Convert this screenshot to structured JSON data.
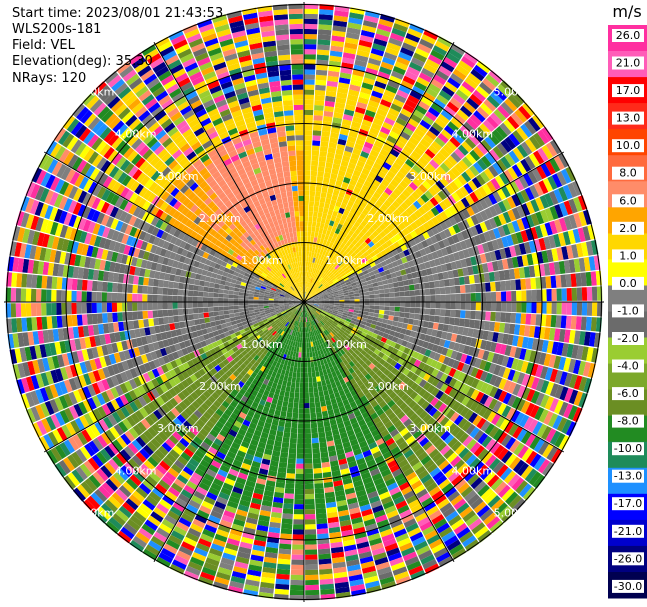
{
  "header": {
    "start_time": "Start time: 2023/08/01 21:43:53",
    "device": "WLS200s-181",
    "field": "Field: VEL",
    "elevation": "Elevation(deg): 35.30",
    "nrays": "NRays: 120"
  },
  "colorbar": {
    "unit": "m/s",
    "ticks": [
      "26.0",
      "21.0",
      "17.0",
      "13.0",
      "10.0",
      "8.0",
      "6.0",
      "2.0",
      "1.0",
      "0.0",
      "-1.0",
      "-2.0",
      "-4.0",
      "-6.0",
      "-8.0",
      "-10.0",
      "-13.0",
      "-17.0",
      "-21.0",
      "-26.0",
      "-30.0"
    ],
    "colors": [
      "#ff2fa0",
      "#ff5cb8",
      "#ff0000",
      "#ff2a1a",
      "#ff4500",
      "#ff6a3d",
      "#ff8c69",
      "#ffa500",
      "#ffd700",
      "#ffff00",
      "#7f7f7f",
      "#6b6b6b",
      "#9acd32",
      "#7ca82a",
      "#6b8e23",
      "#228b22",
      "#1e8b5a",
      "#1e90ff",
      "#0000ff",
      "#0000cd",
      "#000080",
      "#000050"
    ]
  },
  "range_labels": [
    "1.00km",
    "2.00km",
    "3.00km",
    "4.00km",
    "5.00km"
  ],
  "chart_data": {
    "type": "heatmap",
    "projection": "polar (PPI scan)",
    "field": "VEL",
    "units": "m/s",
    "n_rays": 120,
    "ring_spacing_km": 1.0,
    "max_range_km": 5.0,
    "value_range": [
      -30,
      30
    ],
    "sectors": [
      {
        "azimuth_range_deg": [
          300,
          360
        ],
        "range_km": [
          1.0,
          3.0
        ],
        "typical_velocity": 8.0
      },
      {
        "azimuth_range_deg": [
          270,
          90
        ],
        "range_km": [
          0.3,
          3.0
        ],
        "typical_velocity": 2.0
      },
      {
        "azimuth_range_deg": [
          60,
          120
        ],
        "range_km": [
          0.3,
          2.0
        ],
        "typical_velocity": 0.0
      },
      {
        "azimuth_range_deg": [
          240,
          300
        ],
        "range_km": [
          0.3,
          2.0
        ],
        "typical_velocity": 0.0
      },
      {
        "azimuth_range_deg": [
          90,
          270
        ],
        "range_km": [
          0.0,
          4.0
        ],
        "typical_velocity": -2.0
      },
      {
        "azimuth_range_deg": [
          150,
          220
        ],
        "range_km": [
          0.5,
          3.5
        ],
        "typical_velocity": -6.0
      },
      {
        "azimuth_range_deg": [
          0,
          360
        ],
        "range_km": [
          4.0,
          5.0
        ],
        "typical_velocity": "noise"
      }
    ]
  }
}
